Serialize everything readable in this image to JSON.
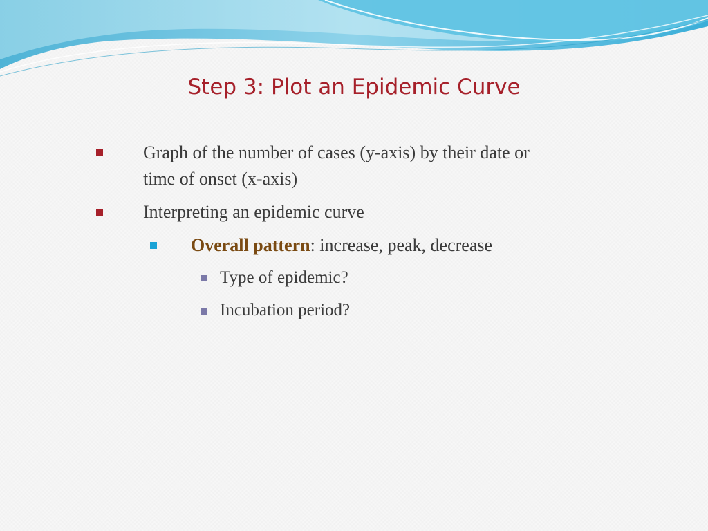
{
  "slide": {
    "title": "Step 3:  Plot an Epidemic Curve",
    "bullets": {
      "item1_line1": "Graph of the number of cases (y-axis) by their date or",
      "item1_line2": "time of onset (x-axis)",
      "item2": "Interpreting an epidemic curve",
      "item3_emphasis": "Overall pattern",
      "item3_rest": ":  increase, peak, decrease",
      "item4": "Type of epidemic?",
      "item5": "Incubation period?"
    }
  },
  "colors": {
    "title": "#a6202a",
    "bullet_level1": "#a6202a",
    "bullet_level2": "#1aa3d6",
    "bullet_level3": "#7b79a8",
    "emphasis_text": "#7a4a12",
    "body_text": "#3b3b3b"
  }
}
